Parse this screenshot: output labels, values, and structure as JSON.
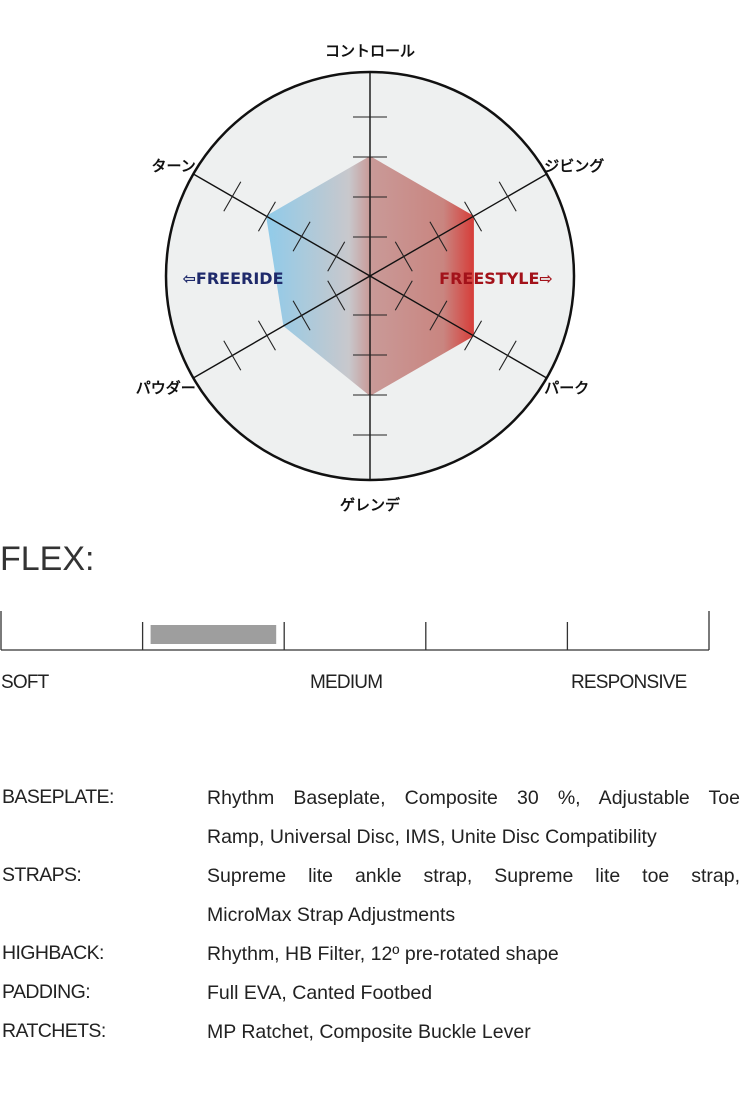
{
  "chart_data": {
    "type": "radar",
    "axes": [
      "コントロール",
      "ジビング",
      "パーク",
      "ゲレンデ",
      "パウダー",
      "ターン"
    ],
    "values": [
      3,
      3,
      3,
      3,
      2.5,
      3
    ],
    "range": [
      0,
      5
    ],
    "tick_step": 1,
    "left_label": "⇦FREERIDE",
    "right_label": "FREESTYLE⇨",
    "colors": {
      "freeride": "#1f2a6b",
      "freestyle": "#a3121a",
      "fill_left": "#8fcbea",
      "fill_mid": "#c8c8cc",
      "fill_right": "#d73a36",
      "background": "#eef0f0"
    }
  },
  "flex": {
    "title": "FLEX:",
    "segments": 5,
    "selected_segment": 2,
    "scale_labels": [
      "SOFT",
      "MEDIUM",
      "RESPONSIVE"
    ],
    "fill_color": "#9e9e9e"
  },
  "specs": [
    {
      "label": "BASEPLATE:",
      "lines": [
        "Rhythm Baseplate, Composite 30 %, Adjustable Toe",
        "Ramp, Universal Disc, IMS, Unite Disc Compatibility"
      ]
    },
    {
      "label": "STRAPS:",
      "lines": [
        "Supreme lite ankle strap, Supreme lite toe strap,",
        "MicroMax Strap Adjustments"
      ]
    },
    {
      "label": "HIGHBACK:",
      "lines": [
        "Rhythm, HB Filter, 12º pre-rotated shape"
      ]
    },
    {
      "label": "PADDING:",
      "lines": [
        "Full EVA, Canted Footbed"
      ]
    },
    {
      "label": "RATCHETS:",
      "lines": [
        "MP Ratchet, Composite Buckle Lever"
      ]
    }
  ]
}
